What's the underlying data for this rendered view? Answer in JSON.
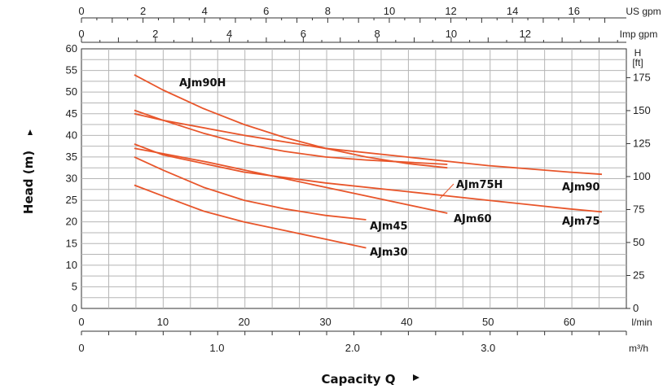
{
  "chart_data": {
    "type": "line",
    "xlabel": "Capacity Q",
    "ylabel": "Head (m)",
    "x_unit": "l/min",
    "xlim": [
      0,
      67
    ],
    "ylim": [
      0,
      60
    ],
    "x_ticks": [
      0,
      10,
      20,
      30,
      40,
      50,
      60
    ],
    "y_ticks": [
      0,
      5,
      10,
      15,
      20,
      25,
      30,
      35,
      40,
      45,
      50,
      55,
      60
    ],
    "grid": true,
    "secondary_axes": {
      "top_us": {
        "unit": "US gpm",
        "ticks": [
          0,
          2,
          4,
          6,
          8,
          10,
          12,
          14,
          16
        ]
      },
      "top_imp": {
        "unit": "Imp gpm",
        "ticks": [
          0,
          2,
          4,
          6,
          8,
          10,
          12
        ]
      },
      "bottom_m3h": {
        "unit": "m³/h",
        "ticks": [
          "0",
          "1.0",
          "2.0",
          "3.0"
        ],
        "values": [
          0,
          1,
          2,
          3
        ]
      },
      "right_ft": {
        "unit_line1": "H",
        "unit_line2": "[ft]",
        "ticks": [
          0,
          25,
          50,
          75,
          100,
          125,
          150,
          175
        ]
      }
    },
    "series": [
      {
        "name": "AJm90H",
        "x": [
          6.5,
          10,
          15,
          20,
          25,
          30,
          35,
          40,
          45
        ],
        "y": [
          54,
          50.5,
          46.2,
          42.5,
          39.5,
          37,
          35,
          33.5,
          32.5
        ]
      },
      {
        "name": "AJm90",
        "x": [
          6.5,
          10,
          20,
          30,
          40,
          50,
          60,
          64
        ],
        "y": [
          45,
          43.5,
          40,
          37,
          35,
          33,
          31.5,
          31
        ]
      },
      {
        "name": "AJm75H",
        "x": [
          6.5,
          10,
          15,
          20,
          25,
          30,
          35,
          40,
          45
        ],
        "y": [
          45.8,
          43.5,
          40.5,
          38,
          36.3,
          35,
          34.3,
          33.8,
          33.3
        ]
      },
      {
        "name": "AJm75",
        "x": [
          6.5,
          10,
          20,
          30,
          40,
          50,
          60,
          64
        ],
        "y": [
          38,
          35.5,
          31.5,
          29,
          27,
          25,
          23,
          22.3
        ]
      },
      {
        "name": "AJm60",
        "x": [
          6.5,
          10,
          15,
          20,
          25,
          30,
          35,
          40,
          45
        ],
        "y": [
          37,
          35.8,
          34,
          32,
          30,
          28,
          26,
          24,
          22
        ]
      },
      {
        "name": "AJm45",
        "x": [
          6.5,
          10,
          15,
          20,
          25,
          30,
          35
        ],
        "y": [
          35,
          32,
          28,
          25,
          23,
          21.5,
          20.5
        ]
      },
      {
        "name": "AJm30",
        "x": [
          6.5,
          10,
          15,
          20,
          25,
          30,
          35
        ],
        "y": [
          28.5,
          26,
          22.5,
          20,
          18,
          16,
          14
        ]
      }
    ]
  }
}
